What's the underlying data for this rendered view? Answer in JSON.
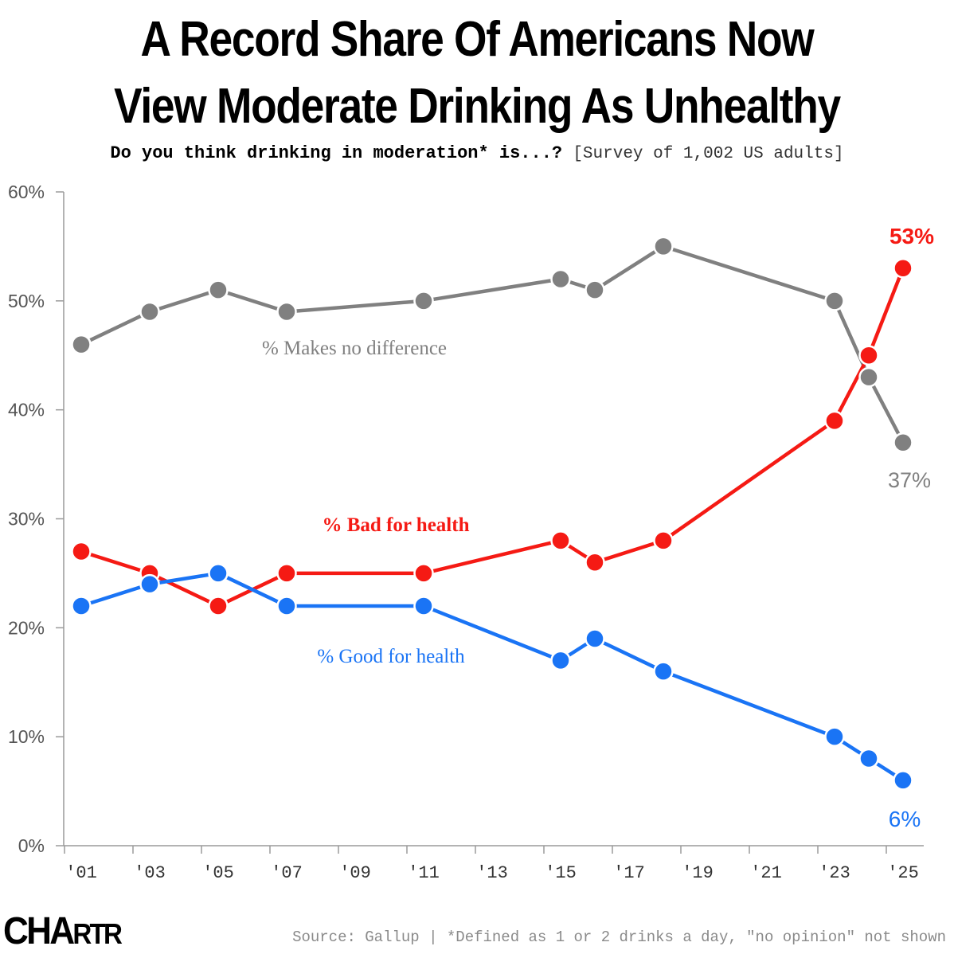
{
  "title_line1": "A Record Share Of Americans Now",
  "title_line2": "View Moderate Drinking As Unhealthy",
  "subtitle_question": "Do you think drinking in moderation* is...?",
  "subtitle_note": "[Survey of 1,002 US adults]",
  "logo_big": "CHA",
  "logo_small": "RTR",
  "source": "Source: Gallup | *Defined as 1 or 2 drinks a day, \"no opinion\" not shown",
  "chart_data": {
    "type": "line",
    "ylim": [
      0,
      60
    ],
    "xlim": [
      2001,
      2025
    ],
    "yticks": [
      0,
      10,
      20,
      30,
      40,
      50,
      60
    ],
    "ytick_labels": [
      "0%",
      "10%",
      "20%",
      "30%",
      "40%",
      "50%",
      "60%"
    ],
    "xticks": [
      2001,
      2003,
      2005,
      2007,
      2009,
      2011,
      2013,
      2015,
      2017,
      2019,
      2021,
      2023,
      2025
    ],
    "xtick_labels": [
      "'01",
      "'03",
      "'05",
      "'07",
      "'09",
      "'11",
      "'13",
      "'15",
      "'17",
      "'19",
      "'21",
      "'23",
      "'25"
    ],
    "grid": false,
    "series": [
      {
        "name": "% Makes no difference",
        "color": "#808080",
        "end_label": "37%",
        "x": [
          2001,
          2003,
          2005,
          2007,
          2011,
          2015,
          2016,
          2018,
          2023,
          2024,
          2025
        ],
        "values": [
          46,
          49,
          51,
          49,
          50,
          52,
          51,
          55,
          50,
          43,
          37
        ]
      },
      {
        "name": "% Bad for health",
        "color": "#f51a14",
        "end_label": "53%",
        "x": [
          2001,
          2003,
          2005,
          2007,
          2011,
          2015,
          2016,
          2018,
          2023,
          2024,
          2025
        ],
        "values": [
          27,
          25,
          22,
          25,
          25,
          28,
          26,
          28,
          39,
          45,
          53
        ]
      },
      {
        "name": "% Good for health",
        "color": "#1a74f5",
        "end_label": "6%",
        "x": [
          2001,
          2003,
          2005,
          2007,
          2011,
          2015,
          2016,
          2018,
          2023,
          2024,
          2025
        ],
        "values": [
          22,
          24,
          25,
          22,
          22,
          17,
          19,
          16,
          10,
          8,
          6
        ]
      }
    ]
  }
}
